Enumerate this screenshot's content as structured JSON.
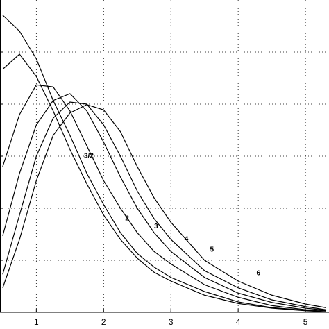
{
  "chart_data": {
    "type": "line",
    "x": [
      0.5,
      0.75,
      1,
      1.25,
      1.5,
      1.75,
      2,
      2.25,
      2.5,
      2.75,
      3,
      3.5,
      4,
      4.5,
      5,
      5.3
    ],
    "series": [
      {
        "name": "3/2",
        "color": "#000000",
        "values": [
          5.71,
          5.4,
          4.87,
          4.07,
          3.4,
          2.67,
          2.07,
          1.53,
          1.13,
          0.87,
          0.67,
          0.4,
          0.2,
          0.09,
          0.04,
          0.01
        ]
      },
      {
        "name": "2",
        "color": "#000000",
        "values": [
          4.67,
          4.96,
          4.53,
          3.87,
          3.13,
          2.47,
          1.87,
          1.4,
          1.04,
          0.77,
          0.6,
          0.33,
          0.17,
          0.08,
          0.03,
          0.01
        ]
      },
      {
        "name": "3",
        "color": "#000000",
        "values": [
          2.8,
          3.8,
          4.37,
          4.33,
          3.87,
          3.2,
          2.53,
          2.0,
          1.53,
          1.17,
          0.93,
          0.53,
          0.29,
          0.13,
          0.05,
          0.03
        ]
      },
      {
        "name": "4",
        "color": "#000000",
        "values": [
          1.47,
          2.67,
          3.6,
          4.07,
          4.2,
          3.87,
          3.27,
          2.6,
          2.0,
          1.53,
          1.17,
          0.67,
          0.37,
          0.19,
          0.08,
          0.04
        ]
      },
      {
        "name": "5",
        "color": "#000000",
        "values": [
          0.73,
          1.87,
          3.0,
          3.73,
          4.04,
          4.0,
          3.6,
          3.0,
          2.33,
          1.8,
          1.4,
          0.8,
          0.47,
          0.24,
          0.11,
          0.05
        ]
      },
      {
        "name": "6",
        "color": "#000000",
        "values": [
          0.47,
          1.4,
          2.53,
          3.4,
          3.83,
          3.99,
          3.89,
          3.47,
          2.8,
          2.2,
          1.73,
          1.0,
          0.6,
          0.33,
          0.16,
          0.09
        ]
      }
    ],
    "xlim": [
      0.46,
      5.35
    ],
    "xticks": [
      1,
      2,
      3,
      4,
      5
    ],
    "ylim": [
      0,
      6
    ],
    "yticks": [
      1,
      2,
      3,
      4,
      5
    ],
    "grid": true
  }
}
